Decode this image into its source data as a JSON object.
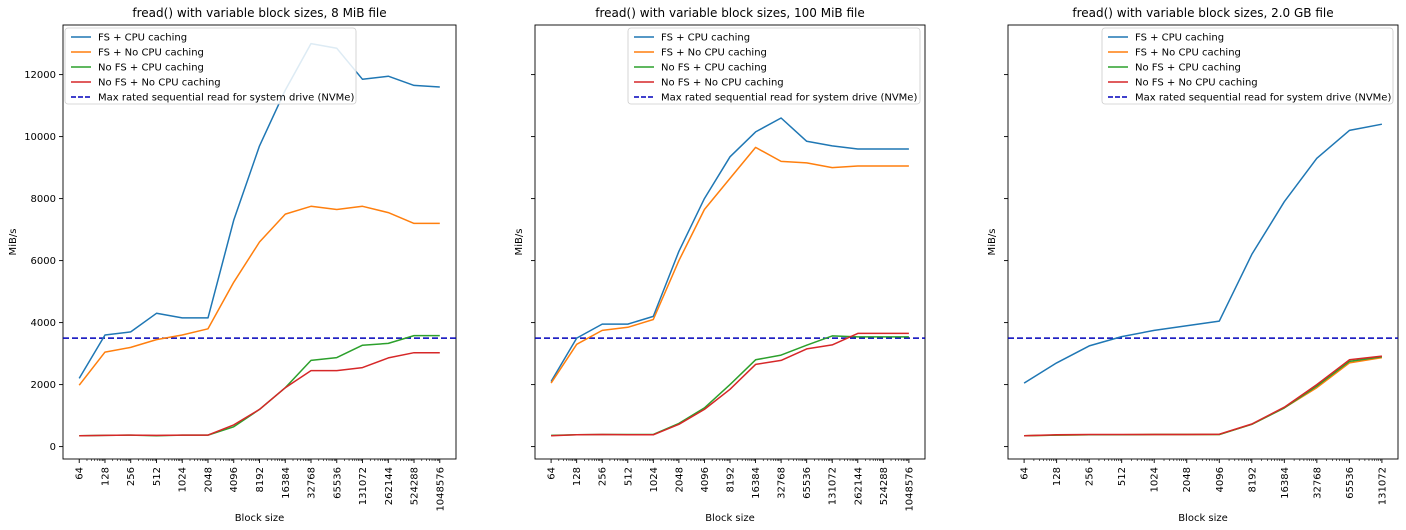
{
  "figure": {
    "legend_labels": [
      "FS + CPU caching",
      "FS + No CPU caching",
      "No FS + CPU caching",
      "No FS + No CPU caching",
      "Max rated sequential read for system drive (NVMe)"
    ]
  },
  "colors": {
    "series": [
      "#1f77b4",
      "#ff7f0e",
      "#2ca02c",
      "#d62728"
    ],
    "max_read_line": "#0000bb",
    "axes": "#000000"
  },
  "chart_data": [
    {
      "type": "line",
      "title": "fread() with variable block sizes, 8 MiB file",
      "xlabel": "Block size",
      "ylabel": "MiB/s",
      "x_scale": "log2",
      "x": [
        64,
        128,
        256,
        512,
        1024,
        2048,
        4096,
        8192,
        16384,
        32768,
        65536,
        131072,
        262144,
        524288,
        1048576
      ],
      "xticklabels": [
        "64",
        "128",
        "256",
        "512",
        "1024",
        "2048",
        "4096",
        "8192",
        "16384",
        "32768",
        "65536",
        "131072",
        "262144",
        "524288",
        "1048576"
      ],
      "ylim": [
        -400,
        13600
      ],
      "yticks": [
        0,
        2000,
        4000,
        6000,
        8000,
        10000,
        12000
      ],
      "yticklabels_visible": true,
      "legend_position": "upper left",
      "grid": false,
      "series": [
        {
          "name": "FS + CPU caching",
          "values": [
            2200,
            3600,
            3700,
            4300,
            4150,
            4150,
            7300,
            9700,
            11500,
            13000,
            12850,
            11850,
            11950,
            11650,
            11600
          ]
        },
        {
          "name": "FS + No CPU caching",
          "values": [
            1980,
            3050,
            3200,
            3450,
            3600,
            3800,
            5300,
            6600,
            7500,
            7750,
            7650,
            7750,
            7550,
            7200,
            7200
          ]
        },
        {
          "name": "No FS + CPU caching",
          "values": [
            350,
            360,
            370,
            350,
            370,
            370,
            640,
            1200,
            1900,
            2780,
            2870,
            3270,
            3330,
            3580,
            3580
          ]
        },
        {
          "name": "No FS + No CPU caching",
          "values": [
            350,
            360,
            370,
            360,
            370,
            370,
            700,
            1200,
            1900,
            2450,
            2450,
            2550,
            2860,
            3030,
            3030
          ]
        }
      ],
      "hline": {
        "name": "Max rated sequential read for system drive (NVMe)",
        "value": 3500,
        "style": "dashed"
      }
    },
    {
      "type": "line",
      "title": "fread() with variable block sizes, 100 MiB file",
      "xlabel": "Block size",
      "ylabel": "MiB/s",
      "x_scale": "log2",
      "x": [
        64,
        128,
        256,
        512,
        1024,
        2048,
        4096,
        8192,
        16384,
        32768,
        65536,
        131072,
        262144,
        524288,
        1048576
      ],
      "xticklabels": [
        "64",
        "128",
        "256",
        "512",
        "1024",
        "2048",
        "4096",
        "8192",
        "16384",
        "32768",
        "65536",
        "131072",
        "262144",
        "524288",
        "1048576"
      ],
      "ylim": [
        -400,
        13600
      ],
      "yticks": [
        0,
        2000,
        4000,
        6000,
        8000,
        10000,
        12000
      ],
      "yticklabels_visible": false,
      "legend_position": "upper right",
      "grid": false,
      "series": [
        {
          "name": "FS + CPU caching",
          "values": [
            2100,
            3500,
            3950,
            3950,
            4200,
            6300,
            8000,
            9350,
            10150,
            10600,
            9850,
            9700,
            9600,
            9600,
            9600
          ]
        },
        {
          "name": "FS + No CPU caching",
          "values": [
            2050,
            3300,
            3750,
            3850,
            4100,
            6000,
            7650,
            8650,
            9650,
            9200,
            9150,
            9000,
            9050,
            9050,
            9050
          ]
        },
        {
          "name": "No FS + CPU caching",
          "values": [
            360,
            380,
            390,
            390,
            390,
            750,
            1250,
            2000,
            2800,
            2950,
            3270,
            3570,
            3540,
            3540,
            3540
          ]
        },
        {
          "name": "No FS + No CPU caching",
          "values": [
            350,
            380,
            390,
            380,
            380,
            720,
            1200,
            1850,
            2650,
            2780,
            3150,
            3280,
            3650,
            3650,
            3650
          ]
        }
      ],
      "hline": {
        "name": "Max rated sequential read for system drive (NVMe)",
        "value": 3500,
        "style": "dashed"
      }
    },
    {
      "type": "line",
      "title": "fread() with variable block sizes, 2.0 GB file",
      "xlabel": "Block size",
      "ylabel": "MiB/s",
      "x_scale": "log2",
      "x": [
        64,
        128,
        256,
        512,
        1024,
        2048,
        4096,
        8192,
        16384,
        32768,
        65536,
        131072
      ],
      "xticklabels": [
        "64",
        "128",
        "256",
        "512",
        "1024",
        "2048",
        "4096",
        "8192",
        "16384",
        "32768",
        "65536",
        "131072"
      ],
      "ylim": [
        -400,
        13600
      ],
      "yticks": [
        0,
        2000,
        4000,
        6000,
        8000,
        10000,
        12000
      ],
      "yticklabels_visible": false,
      "legend_position": "upper right",
      "grid": false,
      "series": [
        {
          "name": "FS + CPU caching",
          "values": [
            2050,
            2700,
            3250,
            3550,
            3750,
            3900,
            4050,
            6200,
            7900,
            9300,
            10200,
            10400
          ]
        },
        {
          "name": "FS + No CPU caching",
          "values": [
            350,
            370,
            380,
            380,
            390,
            390,
            390,
            720,
            1250,
            1900,
            2700,
            2870
          ]
        },
        {
          "name": "No FS + CPU caching",
          "values": [
            350,
            370,
            380,
            380,
            390,
            390,
            390,
            720,
            1250,
            1950,
            2750,
            2900
          ]
        },
        {
          "name": "No FS + No CPU caching",
          "values": [
            350,
            380,
            390,
            390,
            390,
            390,
            400,
            730,
            1270,
            2000,
            2800,
            2920
          ]
        }
      ],
      "hline": {
        "name": "Max rated sequential read for system drive (NVMe)",
        "value": 3500,
        "style": "dashed"
      }
    }
  ]
}
